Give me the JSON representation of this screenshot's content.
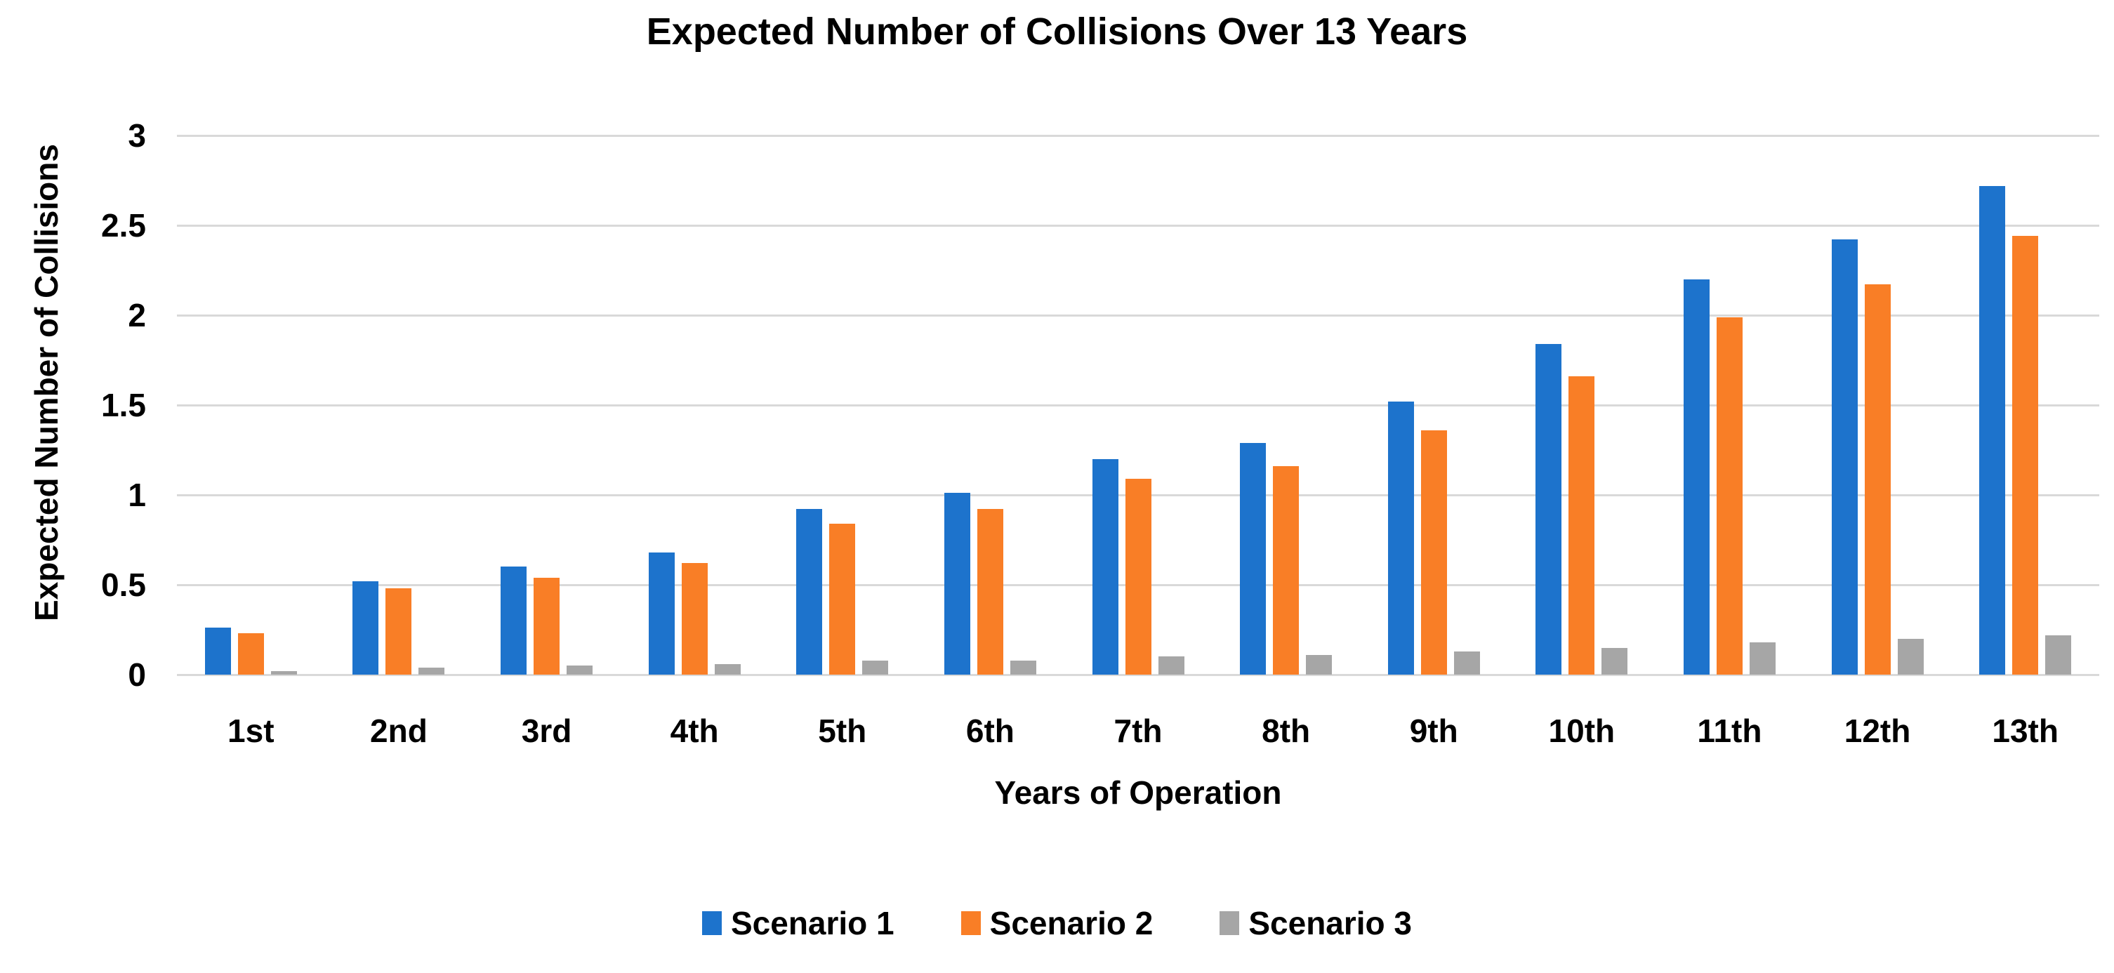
{
  "chart_data": {
    "type": "bar",
    "title": "Expected Number of Collisions Over 13 Years",
    "xlabel": "Years of Operation",
    "ylabel": "Expected Number of Collisions",
    "categories": [
      "1st",
      "2nd",
      "3rd",
      "4th",
      "5th",
      "6th",
      "7th",
      "8th",
      "9th",
      "10th",
      "11th",
      "12th",
      "13th"
    ],
    "series": [
      {
        "name": "Scenario 1",
        "color": "#1d73cc",
        "values": [
          0.26,
          0.52,
          0.6,
          0.68,
          0.92,
          1.01,
          1.2,
          1.29,
          1.52,
          1.84,
          2.2,
          2.42,
          2.72
        ]
      },
      {
        "name": "Scenario 2",
        "color": "#f97e26",
        "values": [
          0.23,
          0.48,
          0.54,
          0.62,
          0.84,
          0.92,
          1.09,
          1.16,
          1.36,
          1.66,
          1.99,
          2.17,
          2.44
        ]
      },
      {
        "name": "Scenario 3",
        "color": "#a6a6a6",
        "values": [
          0.02,
          0.04,
          0.05,
          0.06,
          0.08,
          0.08,
          0.1,
          0.11,
          0.13,
          0.15,
          0.18,
          0.2,
          0.22
        ]
      }
    ],
    "ylim": [
      0,
      3
    ],
    "ytick_step": 0.5,
    "yticks": [
      "0",
      "0.5",
      "1",
      "1.5",
      "2",
      "2.5",
      "3"
    ],
    "grid": "horizontal",
    "gridline_color": "#d9d9d9",
    "background_color": "#ffffff",
    "text_color": "#000000",
    "legend_position": "bottom"
  }
}
